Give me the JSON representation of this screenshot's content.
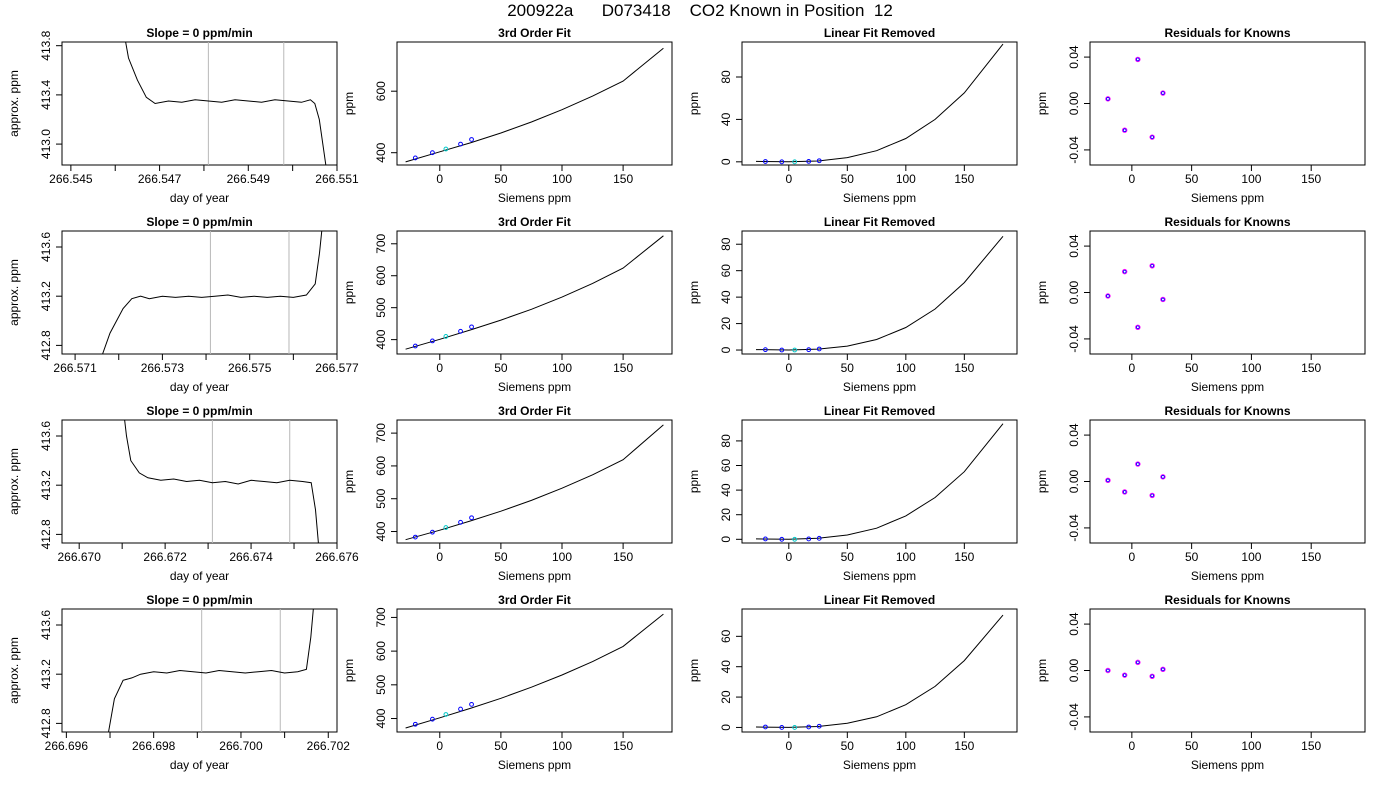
{
  "page_title": "200922a      D073418    CO2 Known in Position  12",
  "colors": {
    "curve": "#000000",
    "gray_line": "#b8b8b8",
    "point_blue": "#0000ff",
    "point_magenta": "#ff00ff",
    "point_cyan": "#00c8c8"
  },
  "chart_data": [
    {
      "type": "line",
      "title": "Slope =  0  ppm/min",
      "xlabel": "day of year",
      "ylabel": "approx. ppm",
      "xlim": [
        266.5448,
        266.551
      ],
      "ylim": [
        412.83,
        413.83
      ],
      "xticks": [
        "266.545",
        "266.547",
        "266.549",
        "266.551"
      ],
      "yticks": [
        "413.0",
        "413.4",
        "413.8"
      ],
      "vlines": [
        266.5481,
        266.5498
      ],
      "x": [
        266.5462,
        266.5463,
        266.5465,
        266.5467,
        266.5469,
        266.5472,
        266.5475,
        266.5478,
        266.5481,
        266.5484,
        266.5487,
        266.549,
        266.5493,
        266.5496,
        266.5499,
        266.5502,
        266.5504,
        266.5505,
        266.5506,
        266.5507,
        266.5508
      ],
      "y": [
        413.9,
        413.7,
        413.52,
        413.38,
        413.33,
        413.35,
        413.34,
        413.36,
        413.35,
        413.34,
        413.36,
        413.35,
        413.34,
        413.36,
        413.35,
        413.34,
        413.36,
        413.33,
        413.2,
        412.95,
        412.7
      ]
    },
    {
      "type": "line",
      "title": "3rd Order Fit",
      "xlabel": "Siemens ppm",
      "ylabel": "ppm",
      "xlim": [
        -35,
        190
      ],
      "ylim": [
        360,
        760
      ],
      "xticks": [
        "0",
        "50",
        "100",
        "150"
      ],
      "yticks": [
        "400",
        "600"
      ],
      "curve_x": [
        -28,
        0,
        25,
        50,
        75,
        100,
        125,
        150,
        183
      ],
      "curve_y": [
        370,
        403,
        432,
        464,
        500,
        540,
        584,
        633,
        740
      ],
      "points_x": [
        -20,
        -6,
        5,
        17,
        26
      ],
      "points_y": [
        383,
        400,
        412,
        428,
        443
      ]
    },
    {
      "type": "line",
      "title": "Linear Fit Removed",
      "xlabel": "Siemens ppm",
      "ylabel": "ppm",
      "xlim": [
        -40,
        195
      ],
      "ylim": [
        -3,
        113
      ],
      "xticks": [
        "0",
        "50",
        "100",
        "150"
      ],
      "yticks": [
        "0",
        "40",
        "80"
      ],
      "curve_x": [
        -28,
        0,
        25,
        50,
        75,
        100,
        125,
        150,
        183
      ],
      "curve_y": [
        0.4,
        0,
        0.8,
        4,
        10.5,
        22,
        40,
        65,
        111
      ],
      "points_x": [
        -20,
        -6,
        5,
        17,
        26
      ],
      "points_y": [
        0.3,
        0,
        0,
        0.4,
        1
      ]
    },
    {
      "type": "scatter",
      "title": "Residuals for Knowns",
      "xlabel": "Siemens ppm",
      "ylabel": "ppm",
      "xlim": [
        -35,
        195
      ],
      "ylim": [
        -0.053,
        0.053
      ],
      "xticks": [
        "0",
        "50",
        "100",
        "150"
      ],
      "yticks": [
        "-0.04",
        "0.00",
        "0.04"
      ],
      "points_x": [
        -20,
        -6,
        5,
        17,
        26
      ],
      "points_y": [
        0.004,
        -0.023,
        0.038,
        -0.029,
        0.009
      ]
    },
    {
      "type": "line",
      "title": "Slope =  0  ppm/min",
      "xlabel": "day of year",
      "ylabel": "approx. ppm",
      "xlim": [
        266.5707,
        266.577
      ],
      "ylim": [
        412.73,
        413.73
      ],
      "xticks": [
        "266.571",
        "266.573",
        "266.575",
        "266.577"
      ],
      "yticks": [
        "412.8",
        "413.2",
        "413.6"
      ],
      "vlines": [
        266.5741,
        266.5759
      ],
      "x": [
        266.5715,
        266.5718,
        266.5721,
        266.5723,
        266.5725,
        266.5727,
        266.573,
        266.5733,
        266.5736,
        266.5739,
        266.5742,
        266.5745,
        266.5748,
        266.5751,
        266.5754,
        266.5757,
        266.576,
        266.5763,
        266.5765,
        266.5766,
        266.5767
      ],
      "y": [
        412.6,
        412.9,
        413.1,
        413.18,
        413.2,
        413.18,
        413.2,
        413.19,
        413.2,
        413.19,
        413.2,
        413.21,
        413.19,
        413.2,
        413.19,
        413.2,
        413.19,
        413.21,
        413.3,
        413.55,
        413.9
      ]
    },
    {
      "type": "line",
      "title": "3rd Order Fit",
      "xlabel": "Siemens ppm",
      "ylabel": "ppm",
      "xlim": [
        -35,
        190
      ],
      "ylim": [
        355,
        740
      ],
      "xticks": [
        "0",
        "50",
        "100",
        "150"
      ],
      "yticks": [
        "400",
        "500",
        "600",
        "700"
      ],
      "curve_x": [
        -28,
        0,
        25,
        50,
        75,
        100,
        125,
        150,
        183
      ],
      "curve_y": [
        370,
        401,
        430,
        461,
        495,
        533,
        576,
        624,
        725
      ],
      "points_x": [
        -20,
        -6,
        5,
        17,
        26
      ],
      "points_y": [
        380,
        396,
        410,
        426,
        440
      ]
    },
    {
      "type": "line",
      "title": "Linear Fit Removed",
      "xlabel": "Siemens ppm",
      "ylabel": "ppm",
      "xlim": [
        -40,
        195
      ],
      "ylim": [
        -3,
        90
      ],
      "xticks": [
        "0",
        "50",
        "100",
        "150"
      ],
      "yticks": [
        "0",
        "20",
        "40",
        "60",
        "80"
      ],
      "curve_x": [
        -28,
        0,
        25,
        50,
        75,
        100,
        125,
        150,
        183
      ],
      "curve_y": [
        0.3,
        0,
        0.7,
        3,
        8,
        17,
        31,
        51,
        86
      ],
      "points_x": [
        -20,
        -6,
        5,
        17,
        26
      ],
      "points_y": [
        0.3,
        0,
        0,
        0.3,
        0.8
      ]
    },
    {
      "type": "scatter",
      "title": "Residuals for Knowns",
      "xlabel": "Siemens ppm",
      "ylabel": "ppm",
      "xlim": [
        -35,
        195
      ],
      "ylim": [
        -0.053,
        0.053
      ],
      "xticks": [
        "0",
        "50",
        "100",
        "150"
      ],
      "yticks": [
        "-0.04",
        "0.00",
        "0.04"
      ],
      "points_x": [
        -20,
        -6,
        5,
        17,
        26
      ],
      "points_y": [
        -0.003,
        0.018,
        -0.03,
        0.023,
        -0.006
      ]
    },
    {
      "type": "line",
      "title": "Slope =  0  ppm/min",
      "xlabel": "day of year",
      "ylabel": "approx. ppm",
      "xlim": [
        266.6696,
        266.676
      ],
      "ylim": [
        412.73,
        413.73
      ],
      "xticks": [
        "266.670",
        "266.672",
        "266.674",
        "266.676"
      ],
      "yticks": [
        "412.8",
        "413.2",
        "413.6"
      ],
      "vlines": [
        266.6731,
        266.6749
      ],
      "x": [
        266.671,
        266.6711,
        266.6712,
        266.6714,
        266.6716,
        266.6719,
        266.6722,
        266.6725,
        266.6728,
        266.6731,
        266.6734,
        266.6737,
        266.674,
        266.6743,
        266.6746,
        266.6749,
        266.6752,
        266.6754,
        266.6755,
        266.6756
      ],
      "y": [
        413.9,
        413.6,
        413.4,
        413.3,
        413.26,
        413.24,
        413.25,
        413.23,
        413.24,
        413.22,
        413.23,
        413.21,
        413.24,
        413.23,
        413.22,
        413.24,
        413.23,
        413.22,
        413.0,
        412.6
      ]
    },
    {
      "type": "line",
      "title": "3rd Order Fit",
      "xlabel": "Siemens ppm",
      "ylabel": "ppm",
      "xlim": [
        -35,
        190
      ],
      "ylim": [
        365,
        740
      ],
      "xticks": [
        "0",
        "50",
        "100",
        "150"
      ],
      "yticks": [
        "400",
        "500",
        "600",
        "700"
      ],
      "curve_x": [
        -28,
        0,
        25,
        50,
        75,
        100,
        125,
        150,
        183
      ],
      "curve_y": [
        375,
        404,
        432,
        462,
        495,
        532,
        573,
        619,
        725
      ],
      "points_x": [
        -20,
        -6,
        5,
        17,
        26
      ],
      "points_y": [
        383,
        398,
        412,
        428,
        442
      ]
    },
    {
      "type": "line",
      "title": "Linear Fit Removed",
      "xlabel": "Siemens ppm",
      "ylabel": "ppm",
      "xlim": [
        -40,
        195
      ],
      "ylim": [
        -3,
        97
      ],
      "xticks": [
        "0",
        "50",
        "100",
        "150"
      ],
      "yticks": [
        "0",
        "20",
        "40",
        "60",
        "80"
      ],
      "curve_x": [
        -28,
        0,
        25,
        50,
        75,
        100,
        125,
        150,
        183
      ],
      "curve_y": [
        0.3,
        0,
        0.8,
        3.5,
        9,
        19,
        34,
        55,
        94
      ],
      "points_x": [
        -20,
        -6,
        5,
        17,
        26
      ],
      "points_y": [
        0.3,
        0,
        0,
        0.3,
        0.8
      ]
    },
    {
      "type": "scatter",
      "title": "Residuals for Knowns",
      "xlabel": "Siemens ppm",
      "ylabel": "ppm",
      "xlim": [
        -35,
        195
      ],
      "ylim": [
        -0.053,
        0.053
      ],
      "xticks": [
        "0",
        "50",
        "100",
        "150"
      ],
      "yticks": [
        "-0.04",
        "0.00",
        "0.04"
      ],
      "points_x": [
        -20,
        -6,
        5,
        17,
        26
      ],
      "points_y": [
        0.001,
        -0.009,
        0.015,
        -0.012,
        0.004
      ]
    },
    {
      "type": "line",
      "title": "Slope =  0  ppm/min",
      "xlabel": "day of year",
      "ylabel": "approx. ppm",
      "xlim": [
        266.6959,
        266.7022
      ],
      "ylim": [
        412.73,
        413.73
      ],
      "xticks": [
        "266.696",
        "266.698",
        "266.700",
        "266.702"
      ],
      "yticks": [
        "412.8",
        "413.2",
        "413.6"
      ],
      "vlines": [
        266.6991,
        266.7009
      ],
      "x": [
        266.6969,
        266.6971,
        266.6973,
        266.6975,
        266.6977,
        266.698,
        266.6983,
        266.6986,
        266.6989,
        266.6992,
        266.6995,
        266.6998,
        266.7001,
        266.7004,
        266.7007,
        266.701,
        266.7013,
        266.7015,
        266.7016,
        266.7017
      ],
      "y": [
        412.6,
        413.0,
        413.15,
        413.17,
        413.2,
        413.22,
        413.21,
        413.23,
        413.22,
        413.21,
        413.23,
        413.22,
        413.21,
        413.22,
        413.23,
        413.21,
        413.22,
        413.24,
        413.5,
        413.9
      ]
    },
    {
      "type": "line",
      "title": "3rd Order Fit",
      "xlabel": "Siemens ppm",
      "ylabel": "ppm",
      "xlim": [
        -35,
        190
      ],
      "ylim": [
        360,
        725
      ],
      "xticks": [
        "0",
        "50",
        "100",
        "150"
      ],
      "yticks": [
        "400",
        "500",
        "600",
        "700"
      ],
      "curve_x": [
        -28,
        0,
        25,
        50,
        75,
        100,
        125,
        150,
        183
      ],
      "curve_y": [
        372,
        402,
        430,
        460,
        493,
        529,
        569,
        614,
        710
      ],
      "points_x": [
        -20,
        -6,
        5,
        17,
        26
      ],
      "points_y": [
        383,
        398,
        412,
        428,
        442
      ]
    },
    {
      "type": "line",
      "title": "Linear Fit Removed",
      "xlabel": "Siemens ppm",
      "ylabel": "ppm",
      "xlim": [
        -40,
        195
      ],
      "ylim": [
        -3,
        78
      ],
      "xticks": [
        "0",
        "50",
        "100",
        "150"
      ],
      "yticks": [
        "0",
        "20",
        "40",
        "60"
      ],
      "curve_x": [
        -28,
        0,
        25,
        50,
        75,
        100,
        125,
        150,
        183
      ],
      "curve_y": [
        0.3,
        0,
        0.6,
        2.8,
        7,
        15,
        27,
        44,
        74
      ],
      "points_x": [
        -20,
        -6,
        5,
        17,
        26
      ],
      "points_y": [
        0.3,
        0,
        0,
        0.3,
        0.8
      ]
    },
    {
      "type": "scatter",
      "title": "Residuals for Knowns",
      "xlabel": "Siemens ppm",
      "ylabel": "ppm",
      "xlim": [
        -35,
        195
      ],
      "ylim": [
        -0.053,
        0.053
      ],
      "xticks": [
        "0",
        "50",
        "100",
        "150"
      ],
      "yticks": [
        "-0.04",
        "0.00",
        "0.04"
      ],
      "points_x": [
        -20,
        -6,
        5,
        17,
        26
      ],
      "points_y": [
        0.0,
        -0.004,
        0.007,
        -0.005,
        0.001
      ]
    }
  ]
}
